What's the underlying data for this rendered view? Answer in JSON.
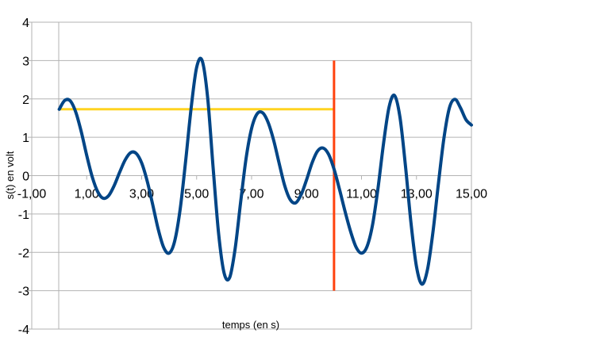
{
  "chart_data": {
    "type": "line",
    "title": "",
    "xlabel": "temps (en s)",
    "ylabel": "s(t) en volt",
    "xlim": [
      -1,
      15
    ],
    "ylim": [
      -4,
      4
    ],
    "x_ticks": [
      -1,
      1,
      3,
      5,
      7,
      9,
      11,
      13,
      15
    ],
    "x_tick_labels": [
      "-1,00",
      "1,00",
      "3,00",
      "5,00",
      "7,00",
      "9,00",
      "11,00",
      "13,00",
      "15,00"
    ],
    "y_ticks": [
      4,
      3,
      2,
      1,
      0,
      -1,
      -2,
      -3,
      -4
    ],
    "y_tick_labels": [
      "4",
      "3",
      "2",
      "1",
      "0",
      "-1",
      "-2",
      "-3",
      "-4"
    ],
    "grid": true,
    "legend": "none",
    "series": [
      {
        "color": "#004586",
        "x": [
          0.0,
          0.2,
          0.4,
          0.6,
          0.8,
          1.0,
          1.2,
          1.4,
          1.6,
          1.8,
          2.0,
          2.2,
          2.4,
          2.6,
          2.8,
          3.0,
          3.2,
          3.4,
          3.6,
          3.8,
          4.0,
          4.2,
          4.4,
          4.6,
          4.8,
          5.0,
          5.2,
          5.4,
          5.6,
          5.8,
          6.0,
          6.2,
          6.4,
          6.6,
          6.8,
          7.0,
          7.2,
          7.4,
          7.6,
          7.8,
          8.0,
          8.2,
          8.4,
          8.6,
          8.8,
          9.0,
          9.2,
          9.4,
          9.6,
          9.8,
          10.0,
          10.2,
          10.4,
          10.6,
          10.8,
          11.0,
          11.2,
          11.4,
          11.6,
          11.8,
          12.0,
          12.2,
          12.4,
          12.6,
          12.8,
          13.0,
          13.2,
          13.4,
          13.6,
          13.8,
          14.0,
          14.2,
          14.4,
          14.6,
          14.8,
          15.0
        ],
        "y": [
          1.73,
          1.96,
          1.95,
          1.66,
          1.15,
          0.53,
          -0.03,
          -0.42,
          -0.59,
          -0.52,
          -0.26,
          0.09,
          0.41,
          0.6,
          0.58,
          0.33,
          -0.14,
          -0.75,
          -1.39,
          -1.87,
          -2.02,
          -1.71,
          -0.88,
          0.38,
          1.76,
          2.82,
          3.0,
          2.04,
          0.21,
          -1.51,
          -2.54,
          -2.66,
          -1.91,
          -0.7,
          0.45,
          1.23,
          1.61,
          1.64,
          1.39,
          0.93,
          0.33,
          -0.25,
          -0.62,
          -0.71,
          -0.5,
          -0.11,
          0.33,
          0.64,
          0.72,
          0.56,
          0.17,
          -0.36,
          -0.93,
          -1.45,
          -1.86,
          -2.02,
          -1.85,
          -1.29,
          -0.33,
          0.83,
          1.78,
          2.09,
          1.52,
          0.25,
          -1.23,
          -2.37,
          -2.83,
          -2.45,
          -1.47,
          -0.2,
          0.98,
          1.77,
          1.99,
          1.77,
          1.46,
          1.32
        ]
      }
    ],
    "annotations": [
      {
        "type": "hline",
        "y": 1.73,
        "x_from": 0,
        "x_to": 10,
        "color": "#FFD320"
      },
      {
        "type": "vline",
        "x": 10,
        "y_from": -3,
        "y_to": 3,
        "color": "#FF420E"
      }
    ]
  }
}
